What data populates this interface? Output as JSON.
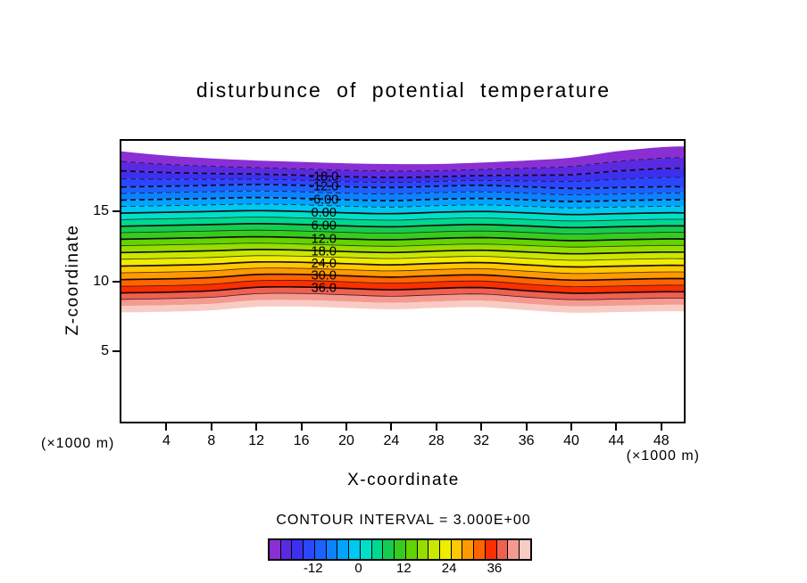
{
  "chart_data": {
    "type": "filled_contour",
    "title": "disturbunce of potential temperature",
    "xlabel": "X-coordinate",
    "ylabel": "Z-coordinate",
    "axis_unit_left": "(×1000 m)",
    "axis_unit_right": "(×1000 m)",
    "contour_interval_label": "CONTOUR INTERVAL = 3.000E+00",
    "contour_interval": 3.0,
    "xlim": [
      0,
      50
    ],
    "ylim": [
      0,
      20
    ],
    "xticks": [
      4,
      8,
      12,
      16,
      20,
      24,
      28,
      32,
      36,
      40,
      44,
      48
    ],
    "yticks": [
      5,
      10,
      15
    ],
    "label_x": 18,
    "x_samples": [
      0,
      4,
      8,
      12,
      16,
      20,
      24,
      28,
      32,
      36,
      40,
      44,
      48,
      50
    ],
    "undulation": {
      "top": [
        0.45,
        0.15,
        -0.05,
        -0.2,
        -0.3,
        -0.4,
        -0.45,
        -0.45,
        -0.35,
        -0.2,
        0.0,
        0.45,
        0.75,
        0.8
      ],
      "mid": [
        0.0,
        0.06,
        0.12,
        0.18,
        0.12,
        0.02,
        -0.04,
        0.06,
        0.12,
        0.02,
        -0.1,
        -0.04,
        0.02,
        0.02
      ],
      "bottom": [
        -0.1,
        -0.05,
        0.05,
        0.3,
        0.32,
        0.22,
        0.12,
        0.22,
        0.28,
        0.06,
        -0.12,
        -0.08,
        -0.02,
        -0.02
      ]
    },
    "levels": [
      {
        "value": -24,
        "z": 18.8,
        "line": false
      },
      {
        "value": -21,
        "z": 18.2,
        "line": true
      },
      {
        "value": -18,
        "z": 17.64,
        "line": true,
        "label": "-18.0"
      },
      {
        "value": -15,
        "z": 17.18,
        "line": true
      },
      {
        "value": -12,
        "z": 16.71,
        "line": true,
        "label": "-12.0"
      },
      {
        "value": -9,
        "z": 16.25,
        "line": true
      },
      {
        "value": -6,
        "z": 15.78,
        "line": true,
        "label": "-6.00"
      },
      {
        "value": -3,
        "z": 15.32,
        "line": true
      },
      {
        "value": 0,
        "z": 14.85,
        "line": true,
        "label": "0.00"
      },
      {
        "value": 3,
        "z": 14.39,
        "line": true
      },
      {
        "value": 6,
        "z": 13.92,
        "line": true,
        "label": "6.00"
      },
      {
        "value": 9,
        "z": 13.46,
        "line": true
      },
      {
        "value": 12,
        "z": 12.99,
        "line": true,
        "label": "12.0"
      },
      {
        "value": 15,
        "z": 12.53,
        "line": true
      },
      {
        "value": 18,
        "z": 12.06,
        "line": true,
        "label": "18.0"
      },
      {
        "value": 21,
        "z": 11.6,
        "line": true
      },
      {
        "value": 24,
        "z": 11.13,
        "line": true,
        "label": "24.0"
      },
      {
        "value": 27,
        "z": 10.67,
        "line": true
      },
      {
        "value": 30,
        "z": 10.2,
        "line": true,
        "label": "30.0"
      },
      {
        "value": 33,
        "z": 9.74,
        "line": true
      },
      {
        "value": 36,
        "z": 9.27,
        "line": true,
        "label": "36.0"
      },
      {
        "value": 39,
        "z": 8.81,
        "line": true
      },
      {
        "value": 42,
        "z": 8.34,
        "line": false
      },
      {
        "value": 45,
        "z": 7.88,
        "line": false
      }
    ],
    "band_colors": [
      "#8a2fd4",
      "#5a2ae0",
      "#3c30ee",
      "#2a46ff",
      "#1b62ff",
      "#0b82ff",
      "#00a4ff",
      "#00c8f0",
      "#00e0c8",
      "#00d890",
      "#16cc50",
      "#36cc1e",
      "#62d400",
      "#96de00",
      "#c8e800",
      "#f0ec00",
      "#ffc800",
      "#ff9a00",
      "#ff6400",
      "#fa3000",
      "#f06050",
      "#f49a90",
      "#f8ccc4"
    ],
    "colorbar": {
      "vmin": -24,
      "vmax": 45,
      "ticks": [
        -12,
        0,
        12,
        24,
        36
      ]
    }
  }
}
